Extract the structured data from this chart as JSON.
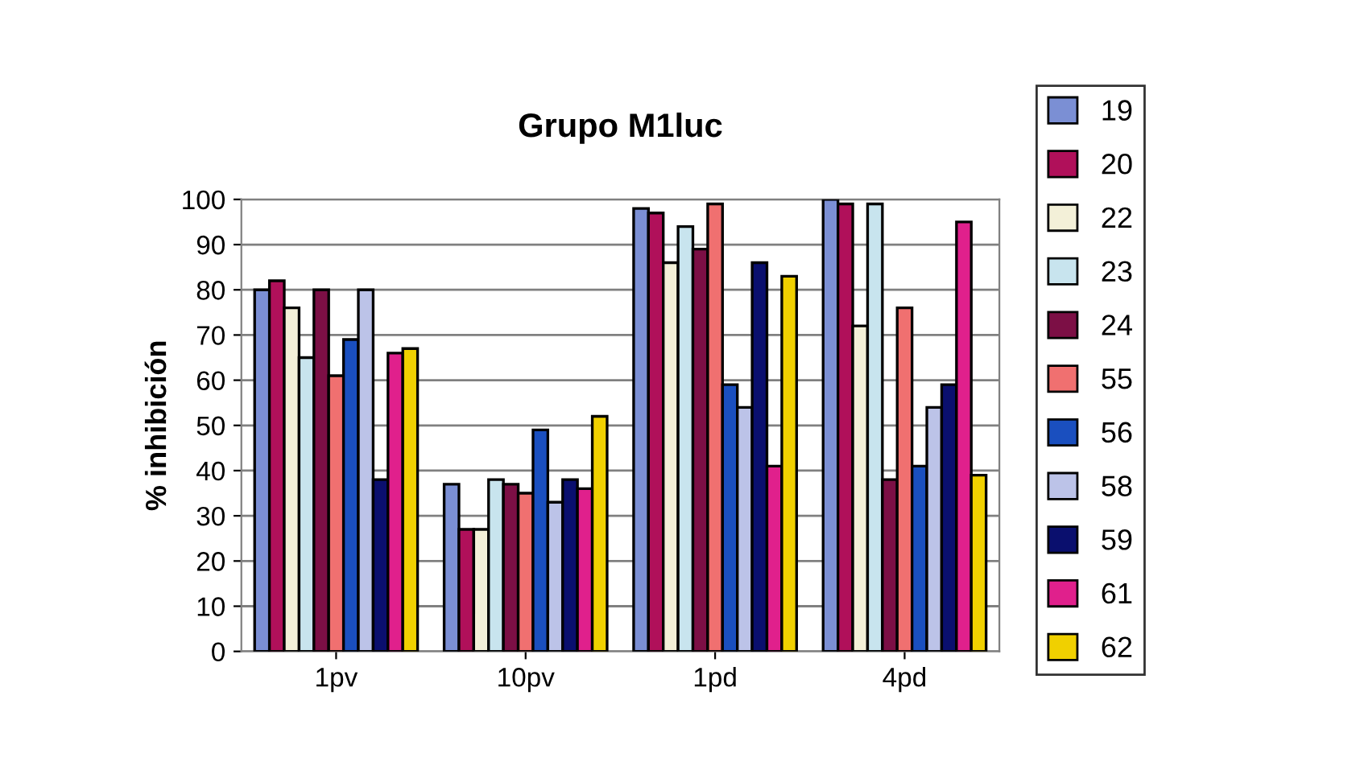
{
  "chart_data": {
    "type": "bar",
    "title": "Grupo M1luc",
    "ylabel": "% inhibición",
    "categories": [
      "1pv",
      "10pv",
      "1pd",
      "4pd"
    ],
    "series": [
      {
        "name": "19",
        "color": "#7b8fd4",
        "values": [
          80,
          37,
          98,
          100
        ]
      },
      {
        "name": "20",
        "color": "#b0105a",
        "values": [
          82,
          27,
          97,
          99
        ]
      },
      {
        "name": "22",
        "color": "#f3f0d8",
        "values": [
          76,
          27,
          86,
          72
        ]
      },
      {
        "name": "23",
        "color": "#c8e4ee",
        "values": [
          65,
          38,
          94,
          99
        ]
      },
      {
        "name": "24",
        "color": "#7c0f45",
        "values": [
          80,
          37,
          89,
          38
        ]
      },
      {
        "name": "55",
        "color": "#f07070",
        "values": [
          61,
          35,
          99,
          76
        ]
      },
      {
        "name": "56",
        "color": "#1a4fbf",
        "values": [
          69,
          49,
          59,
          41
        ]
      },
      {
        "name": "58",
        "color": "#bcc3e8",
        "values": [
          80,
          33,
          54,
          54
        ]
      },
      {
        "name": "59",
        "color": "#0a0f6e",
        "values": [
          38,
          38,
          86,
          59
        ]
      },
      {
        "name": "61",
        "color": "#e0208c",
        "values": [
          66,
          36,
          41,
          95
        ]
      },
      {
        "name": "62",
        "color": "#f0d000",
        "values": [
          67,
          52,
          83,
          39
        ]
      }
    ],
    "ylim": [
      0,
      100
    ],
    "yticks": [
      0,
      10,
      20,
      30,
      40,
      50,
      60,
      70,
      80,
      90,
      100
    ],
    "grid": "y",
    "legend": "right"
  }
}
